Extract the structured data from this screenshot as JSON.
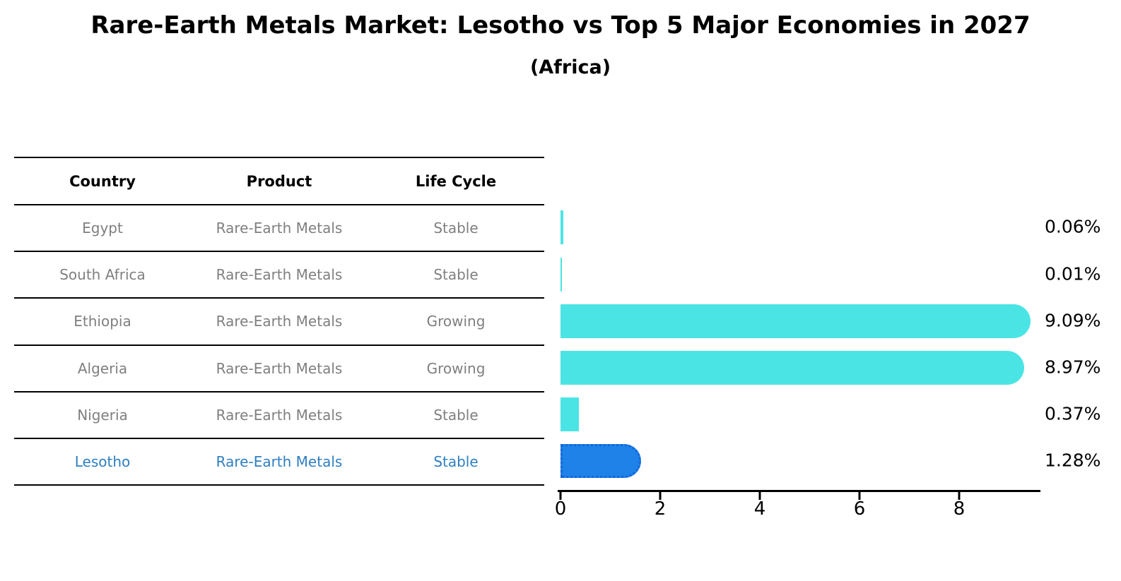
{
  "title": "Rare-Earth Metals Market: Lesotho vs Top 5 Major Economies in 2027",
  "subtitle": "(Africa)",
  "table": {
    "headers": [
      "Country",
      "Product",
      "Life Cycle"
    ],
    "rows": [
      {
        "country": "Egypt",
        "product": "Rare-Earth Metals",
        "life_cycle": "Stable",
        "highlight": false
      },
      {
        "country": "South Africa",
        "product": "Rare-Earth Metals",
        "life_cycle": "Stable",
        "highlight": false
      },
      {
        "country": "Ethiopia",
        "product": "Rare-Earth Metals",
        "life_cycle": "Growing",
        "highlight": false
      },
      {
        "country": "Algeria",
        "product": "Rare-Earth Metals",
        "life_cycle": "Growing",
        "highlight": false
      },
      {
        "country": "Nigeria",
        "product": "Rare-Earth Metals",
        "life_cycle": "Stable",
        "highlight": false
      },
      {
        "country": "Lesotho",
        "product": "Rare-Earth Metals",
        "life_cycle": "Stable",
        "highlight": true
      }
    ]
  },
  "chart_data": {
    "type": "bar",
    "orientation": "horizontal",
    "title": "Rare-Earth Metals Market: Lesotho vs Top 5 Major Economies in 2027 (Africa)",
    "categories": [
      "Egypt",
      "South Africa",
      "Ethiopia",
      "Algeria",
      "Nigeria",
      "Lesotho"
    ],
    "values": [
      0.06,
      0.01,
      9.09,
      8.97,
      0.37,
      1.28
    ],
    "value_labels": [
      "0.06%",
      "0.01%",
      "9.09%",
      "8.97%",
      "0.37%",
      "1.28%"
    ],
    "unit": "% market share",
    "xlabel": "",
    "ylabel": "",
    "xlim": [
      0,
      9.6
    ],
    "x_ticks": [
      0,
      2,
      4,
      6,
      8
    ],
    "x_tick_labels": [
      "0",
      "2",
      "4",
      "6",
      "8"
    ],
    "grid": false,
    "legend": "none",
    "highlight_index": 5
  },
  "colors": {
    "bar_cyan": "#4be4e4",
    "highlight_blue": "#1e82e8",
    "highlight_border": "#1565d8",
    "link_blue": "#2e7fc2",
    "table_text_gray": "#7f7f7f",
    "axis_black": "#000000",
    "background": "#ffffff"
  }
}
